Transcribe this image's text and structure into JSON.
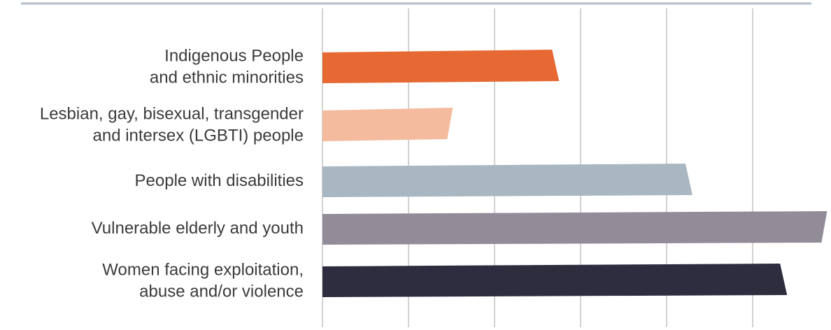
{
  "chart_data": {
    "type": "bar",
    "orientation": "horizontal",
    "title": "",
    "xlabel": "",
    "ylabel": "",
    "categories": [
      [
        "Indigenous People",
        "and ethnic minorities"
      ],
      [
        "Lesbian, gay, bisexual, transgender",
        "and intersex (LGBTI) people"
      ],
      [
        "People with disabilities"
      ],
      [
        "Vulnerable elderly and youth"
      ],
      [
        "Women facing exploitation,",
        "abuse and/or violence"
      ]
    ],
    "values": [
      2.75,
      1.45,
      4.3,
      5.8,
      5.4
    ],
    "xlim": [
      0,
      6
    ],
    "x_tick_labels": "none",
    "grid": "vertical",
    "legend": "none",
    "colors": [
      "#e66933",
      "#f5bb9e",
      "#a9b7c2",
      "#928c98",
      "#2e2d40"
    ],
    "top_rule_color": "#b3bfc9",
    "grid_color": "#b5b5b5"
  }
}
